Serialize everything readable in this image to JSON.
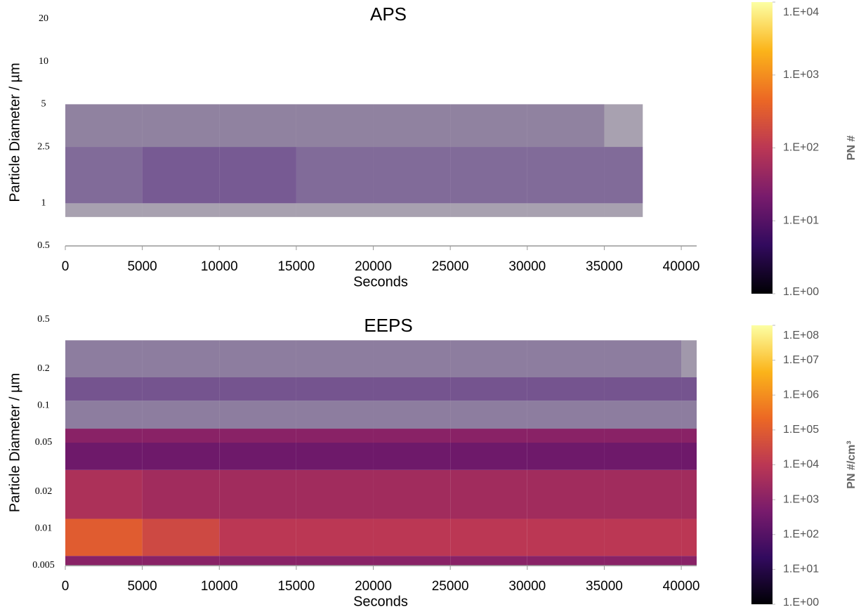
{
  "chart_data": [
    {
      "type": "heatmap",
      "title": "APS",
      "xlabel": "Seconds",
      "ylabel": "Particle Diameter / µm",
      "xlim": [
        0,
        41000
      ],
      "xticks": [
        0,
        5000,
        10000,
        15000,
        20000,
        25000,
        30000,
        35000,
        40000
      ],
      "ylim": [
        0.5,
        20
      ],
      "ylog": true,
      "yticks": [
        0.5,
        1,
        2.5,
        5,
        10,
        20
      ],
      "x_edges": [
        0,
        5000,
        10000,
        15000,
        20000,
        25000,
        30000,
        35000,
        37500
      ],
      "y_edges": [
        0.8,
        1,
        2.5,
        5
      ],
      "z": [
        [
          2,
          2,
          2,
          2,
          2,
          2,
          2,
          2
        ],
        [
          4,
          5,
          5,
          4,
          4,
          4,
          4,
          4
        ],
        [
          3,
          3,
          3,
          3,
          3,
          3,
          3,
          2
        ]
      ],
      "colorbar": {
        "label": "PN #",
        "lim": [
          1,
          10000
        ],
        "log": true,
        "ticks": [
          {
            "value": 1,
            "label": "1.E+00"
          },
          {
            "value": 10,
            "label": "1.E+01"
          },
          {
            "value": 100,
            "label": "1.E+02"
          },
          {
            "value": 1000,
            "label": "1.E+03"
          },
          {
            "value": 10000,
            "label": "1.E+04"
          }
        ]
      },
      "colormap": [
        "#000004",
        "#320a5e",
        "#781b6c",
        "#bb3754",
        "#ec6824",
        "#fbb41a",
        "#fcffa4"
      ]
    },
    {
      "type": "heatmap",
      "title": "EEPS",
      "xlabel": "Seconds",
      "ylabel": "Particle Diameter / µm",
      "xlim": [
        0,
        41000
      ],
      "xticks": [
        0,
        5000,
        10000,
        15000,
        20000,
        25000,
        30000,
        35000,
        40000
      ],
      "ylim": [
        0.005,
        0.5
      ],
      "ylog": true,
      "yticks": [
        0.005,
        0.01,
        0.02,
        0.05,
        0.1,
        0.2,
        0.5
      ],
      "x_edges": [
        0,
        5000,
        10000,
        15000,
        20000,
        25000,
        30000,
        35000,
        40000,
        41000
      ],
      "y_edges": [
        0.005,
        0.006,
        0.012,
        0.03,
        0.05,
        0.065,
        0.11,
        0.17,
        0.34
      ],
      "z": [
        [
          1000,
          1000,
          1000,
          1000,
          1000,
          1000,
          1000,
          1000,
          1000
        ],
        [
          100000,
          30000,
          10000,
          10000,
          10000,
          10000,
          10000,
          10000,
          10000
        ],
        [
          5000,
          3000,
          3000,
          3000,
          3000,
          3000,
          3000,
          3000,
          3000
        ],
        [
          300,
          300,
          300,
          300,
          300,
          300,
          300,
          300,
          300
        ],
        [
          1000,
          1000,
          1000,
          1000,
          1000,
          1000,
          1000,
          1000,
          1000
        ],
        [
          10,
          10,
          10,
          10,
          10,
          10,
          10,
          10,
          10
        ],
        [
          30,
          30,
          30,
          30,
          30,
          30,
          30,
          30,
          30
        ],
        [
          10,
          10,
          10,
          10,
          10,
          10,
          10,
          10,
          5
        ]
      ],
      "colorbar": {
        "label": "PN #/cm³",
        "lim": [
          1,
          100000000
        ],
        "log": true,
        "ticks": [
          {
            "value": 1,
            "label": "1.E+00"
          },
          {
            "value": 10,
            "label": "1.E+01"
          },
          {
            "value": 100,
            "label": "1.E+02"
          },
          {
            "value": 1000,
            "label": "1.E+03"
          },
          {
            "value": 10000,
            "label": "1.E+04"
          },
          {
            "value": 100000,
            "label": "1.E+05"
          },
          {
            "value": 1000000,
            "label": "1.E+06"
          },
          {
            "value": 10000000,
            "label": "1.E+07"
          },
          {
            "value": 100000000,
            "label": "1.E+08"
          }
        ]
      },
      "colormap": [
        "#000004",
        "#320a5e",
        "#781b6c",
        "#bb3754",
        "#ec6824",
        "#fbb41a",
        "#fcffa4"
      ]
    }
  ]
}
